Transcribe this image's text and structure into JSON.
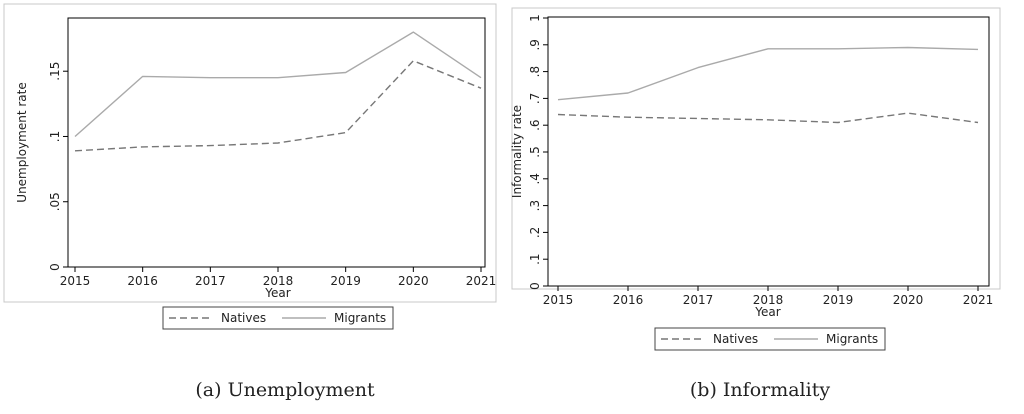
{
  "chart_data": [
    {
      "type": "line",
      "caption": "(a) Unemployment",
      "xlabel": "Year",
      "ylabel": "Unemployment rate",
      "x": [
        2015,
        2016,
        2017,
        2018,
        2019,
        2020,
        2021
      ],
      "x_tick_labels": [
        "2015",
        "2016",
        "2017",
        "2018",
        "2019",
        "2020",
        "2021"
      ],
      "ylim": [
        0,
        0.19
      ],
      "y_ticks": [
        0,
        0.05,
        0.1,
        0.15
      ],
      "y_tick_labels": [
        "0",
        ".05",
        ".1",
        ".15"
      ],
      "series": [
        {
          "name": "Natives",
          "style": "dashed",
          "color": "#777777",
          "values": [
            0.089,
            0.092,
            0.093,
            0.095,
            0.103,
            0.158,
            0.137
          ]
        },
        {
          "name": "Migrants",
          "style": "solid",
          "color": "#aaaaaa",
          "values": [
            0.1,
            0.146,
            0.145,
            0.145,
            0.149,
            0.18,
            0.145
          ]
        }
      ],
      "legend": {
        "position": "bottom",
        "items": [
          "Natives",
          "Migrants"
        ]
      }
    },
    {
      "type": "line",
      "caption": "(b) Informality",
      "xlabel": "Year",
      "ylabel": "Informality rate",
      "x": [
        2015,
        2016,
        2017,
        2018,
        2019,
        2020,
        2021
      ],
      "x_tick_labels": [
        "2015",
        "2016",
        "2017",
        "2018",
        "2019",
        "2020",
        "2021"
      ],
      "ylim": [
        0,
        1
      ],
      "y_ticks": [
        0,
        0.1,
        0.2,
        0.3,
        0.4,
        0.5,
        0.6,
        0.7,
        0.8,
        0.9,
        1
      ],
      "y_tick_labels": [
        "0",
        ".1",
        ".2",
        ".3",
        ".4",
        ".5",
        ".6",
        ".7",
        ".8",
        ".9",
        "1"
      ],
      "series": [
        {
          "name": "Natives",
          "style": "dashed",
          "color": "#777777",
          "values": [
            0.64,
            0.63,
            0.625,
            0.62,
            0.61,
            0.645,
            0.61
          ]
        },
        {
          "name": "Migrants",
          "style": "solid",
          "color": "#aaaaaa",
          "values": [
            0.695,
            0.72,
            0.815,
            0.885,
            0.885,
            0.89,
            0.883
          ]
        }
      ],
      "legend": {
        "position": "bottom",
        "items": [
          "Natives",
          "Migrants"
        ]
      }
    }
  ]
}
